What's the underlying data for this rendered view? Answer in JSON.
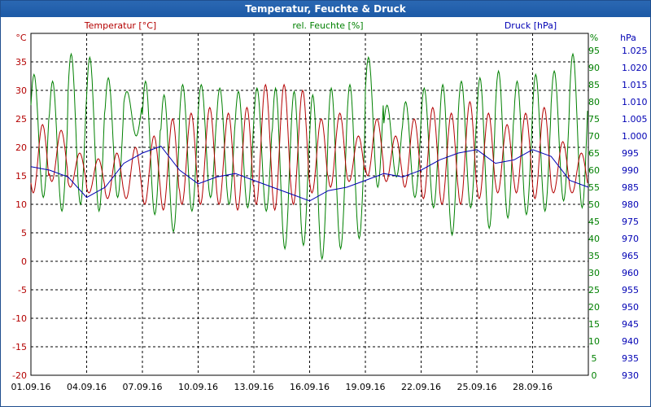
{
  "window": {
    "title": "Temperatur, Feuchte & Druck"
  },
  "colors": {
    "temperature": "#b40000",
    "humidity": "#008000",
    "pressure": "#0000b4",
    "title_bg": "#1c5aa6",
    "grid": "#000000"
  },
  "chart_data": {
    "type": "line",
    "title": "Temperatur, Feuchte & Druck",
    "x": {
      "label": "",
      "range_days": [
        0,
        30
      ],
      "tick_labels": [
        "01.09.16",
        "04.09.16",
        "07.09.16",
        "10.09.16",
        "13.09.16",
        "16.09.16",
        "19.09.16",
        "22.09.16",
        "25.09.16",
        "28.09.16"
      ]
    },
    "axes": {
      "temperature": {
        "unit": "°C",
        "min": -20,
        "max": 40,
        "step": 5,
        "ticks": [
          -20,
          -15,
          -10,
          -5,
          0,
          5,
          10,
          15,
          20,
          25,
          30,
          35
        ]
      },
      "humidity": {
        "unit": "%",
        "min": 0,
        "max": 100,
        "step": 5,
        "ticks": [
          0,
          5,
          10,
          15,
          20,
          25,
          30,
          35,
          40,
          45,
          50,
          55,
          60,
          65,
          70,
          75,
          80,
          85,
          90,
          95
        ]
      },
      "pressure": {
        "unit": "hPa",
        "min": 930,
        "max": 1030,
        "step": 5,
        "ticks": [
          "930",
          "935",
          "940",
          "945",
          "950",
          "955",
          "960",
          "965",
          "970",
          "975",
          "980",
          "985",
          "990",
          "995",
          "1.000",
          "1.005",
          "1.010",
          "1.015",
          "1.020",
          "1.025"
        ]
      }
    },
    "legend": [
      "Temperatur [°C]",
      "rel. Feuchte [%]",
      "Druck [hPa]"
    ],
    "series": [
      {
        "name": "Temperatur [°C]",
        "axis": "temperature",
        "day_min": [
          12,
          14,
          13,
          12,
          11,
          11,
          10,
          9,
          10,
          10,
          10,
          9,
          10,
          9,
          10,
          12,
          13,
          14,
          15,
          14,
          13,
          11,
          10,
          10,
          11,
          12,
          12,
          11,
          12,
          12
        ],
        "day_max": [
          24,
          23,
          19,
          18,
          19,
          20,
          22,
          25,
          26,
          27,
          26,
          27,
          31,
          31,
          30,
          25,
          26,
          22,
          25,
          22,
          25,
          27,
          26,
          28,
          26,
          24,
          26,
          27,
          21,
          19
        ]
      },
      {
        "name": "rel. Feuchte [%]",
        "axis": "humidity",
        "day_min": [
          52,
          48,
          50,
          48,
          52,
          70,
          47,
          42,
          48,
          52,
          50,
          49,
          48,
          37,
          38,
          34,
          37,
          40,
          55,
          58,
          52,
          49,
          41,
          49,
          43,
          46,
          47,
          48,
          51,
          49
        ],
        "day_max": [
          88,
          86,
          94,
          93,
          87,
          83,
          86,
          82,
          85,
          85,
          84,
          83,
          84,
          84,
          83,
          82,
          84,
          85,
          93,
          79,
          80,
          84,
          85,
          86,
          87,
          89,
          86,
          88,
          89,
          94
        ]
      },
      {
        "name": "Druck [hPa]",
        "axis": "pressure",
        "daily": [
          991,
          990,
          988,
          982,
          985,
          992,
          995,
          997,
          990,
          986,
          988,
          989,
          987,
          985,
          983,
          981,
          984,
          985,
          987,
          989,
          988,
          990,
          993,
          995,
          996,
          992,
          993,
          996,
          994,
          987,
          985
        ]
      }
    ]
  }
}
